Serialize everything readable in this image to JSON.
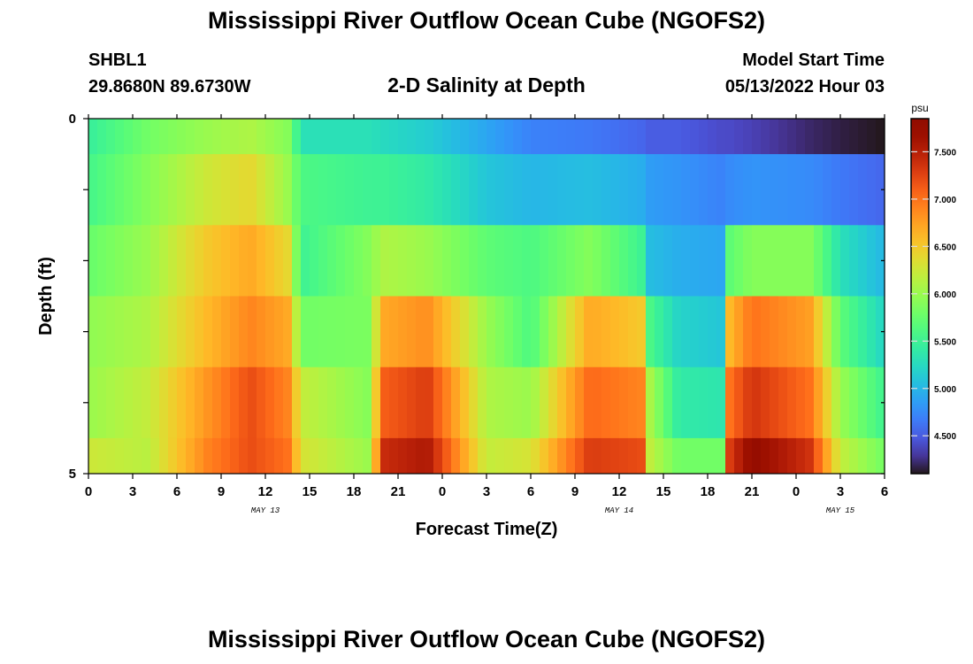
{
  "page": {
    "title": "Mississippi River Outflow Ocean Cube (NGOFS2)",
    "title_repeat": "Mississippi River Outflow Ocean Cube (NGOFS2)",
    "station_id": "SHBL1",
    "station_coords": "29.8680N  89.6730W",
    "subtitle": "2-D Salinity at Depth",
    "model_start_label": "Model Start Time",
    "model_start_value": "05/13/2022 Hour 03"
  },
  "chart_data": {
    "type": "heatmap",
    "title": "2-D Salinity at Depth",
    "xlabel": "Forecast Time(Z)",
    "ylabel": "Depth (ft)",
    "x_tick_labels": [
      "0",
      "3",
      "6",
      "9",
      "12",
      "15",
      "18",
      "21",
      "0",
      "3",
      "6",
      "9",
      "12",
      "15",
      "18",
      "21",
      "0",
      "3",
      "6"
    ],
    "y_tick_labels": [
      "0",
      "5"
    ],
    "ylim": [
      0,
      5
    ],
    "x_hours_since_start_range": [
      0,
      54
    ],
    "date_labels": [
      {
        "text": "MAY 13",
        "at_tick": 4
      },
      {
        "text": "MAY 14",
        "at_tick": 12
      },
      {
        "text": "MAY 15",
        "at_tick": 17
      }
    ],
    "colorbar": {
      "unit": "psu",
      "min": 4.1,
      "max": 7.85,
      "ticks": [
        "4.500",
        "5.000",
        "5.500",
        "6.000",
        "6.500",
        "7.000",
        "7.500"
      ],
      "tick_values": [
        4.5,
        5.0,
        5.5,
        6.0,
        6.5,
        7.0,
        7.5
      ],
      "colormap": "turbo"
    },
    "depth_layers_ft": [
      0.5,
      1.5,
      2.5,
      3.5,
      4.5,
      5.0
    ],
    "layer_heights_ft": [
      0.5,
      1.0,
      1.0,
      1.0,
      1.0,
      0.5
    ],
    "time_keyframes": [
      {
        "t": 0,
        "v": [
          5.45,
          5.55,
          5.75,
          5.95,
          6.0,
          6.25
        ]
      },
      {
        "t": 4,
        "v": [
          5.8,
          5.9,
          6.0,
          6.1,
          6.2,
          6.15
        ]
      },
      {
        "t": 8,
        "v": [
          6.0,
          6.25,
          6.5,
          6.6,
          6.8,
          6.9
        ]
      },
      {
        "t": 11,
        "v": [
          6.1,
          6.4,
          6.7,
          6.9,
          7.2,
          7.2
        ]
      },
      {
        "t": 13.5,
        "v": [
          5.9,
          6.0,
          6.4,
          6.7,
          6.9,
          7.0
        ]
      },
      {
        "t": 14.5,
        "v": [
          5.3,
          5.6,
          5.5,
          5.8,
          6.2,
          6.3
        ]
      },
      {
        "t": 19,
        "v": [
          5.3,
          5.5,
          5.9,
          5.85,
          5.9,
          6.0
        ]
      },
      {
        "t": 20,
        "v": [
          5.25,
          5.5,
          6.1,
          6.7,
          7.1,
          7.4
        ]
      },
      {
        "t": 23,
        "v": [
          5.15,
          5.4,
          6.0,
          6.85,
          7.3,
          7.55
        ]
      },
      {
        "t": 27,
        "v": [
          4.9,
          5.1,
          5.7,
          6.0,
          6.1,
          6.2
        ]
      },
      {
        "t": 30,
        "v": [
          4.7,
          5.0,
          5.6,
          5.6,
          6.0,
          6.3
        ]
      },
      {
        "t": 34,
        "v": [
          4.65,
          5.05,
          5.9,
          6.7,
          7.05,
          7.3
        ]
      },
      {
        "t": 37.5,
        "v": [
          4.55,
          4.95,
          5.5,
          6.5,
          6.9,
          7.2
        ]
      },
      {
        "t": 38,
        "v": [
          4.5,
          4.85,
          5.05,
          5.6,
          6.1,
          6.2
        ]
      },
      {
        "t": 40,
        "v": [
          4.5,
          4.8,
          4.95,
          5.2,
          5.4,
          5.8
        ]
      },
      {
        "t": 43,
        "v": [
          4.4,
          4.7,
          4.9,
          5.1,
          5.35,
          5.8
        ]
      },
      {
        "t": 43.5,
        "v": [
          4.4,
          4.75,
          5.7,
          6.6,
          7.0,
          7.3
        ]
      },
      {
        "t": 45,
        "v": [
          4.35,
          4.8,
          5.9,
          7.0,
          7.35,
          7.75
        ]
      },
      {
        "t": 49,
        "v": [
          4.2,
          4.75,
          5.9,
          6.75,
          7.0,
          7.35
        ]
      },
      {
        "t": 51,
        "v": [
          4.15,
          4.65,
          5.3,
          5.7,
          6.0,
          6.2
        ]
      },
      {
        "t": 54,
        "v": [
          4.1,
          4.55,
          5.0,
          5.2,
          5.5,
          5.8
        ]
      }
    ]
  }
}
